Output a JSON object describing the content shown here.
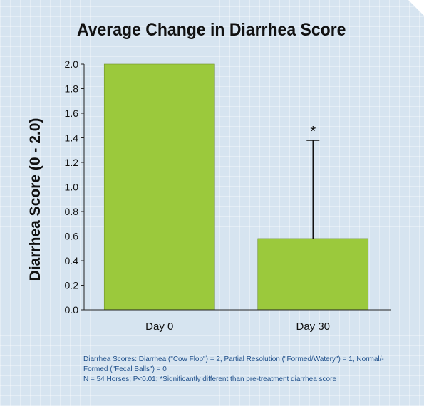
{
  "chart_data": {
    "type": "bar",
    "title": "Average Change in Diarrhea Score",
    "ylabel": "Diarrhea Score (0 - 2.0)",
    "xlabel": "",
    "categories": [
      "Day 0",
      "Day 30"
    ],
    "values": [
      2.0,
      0.58
    ],
    "error_upper": [
      null,
      1.38
    ],
    "annotations": [
      "",
      "*"
    ],
    "ylim": [
      0,
      2.0
    ],
    "yticks": [
      "0.0",
      "0.2",
      "0.4",
      "0.6",
      "0.8",
      "1.0",
      "1.2",
      "1.4",
      "1.6",
      "1.8",
      "2.0"
    ],
    "grid": false,
    "bar_color": "#9bc93c"
  },
  "footnote": {
    "line1": "Diarrhea Scores: Diarrhea (\"Cow Flop\") = 2, Partial Resolution (\"Formed/Watery\") = 1, Normal/-",
    "line2": "Formed (\"Fecal Balls\") = 0",
    "line3": "N = 54 Horses; P<0.01; *Significantly different than pre-treatment diarrhea score"
  }
}
